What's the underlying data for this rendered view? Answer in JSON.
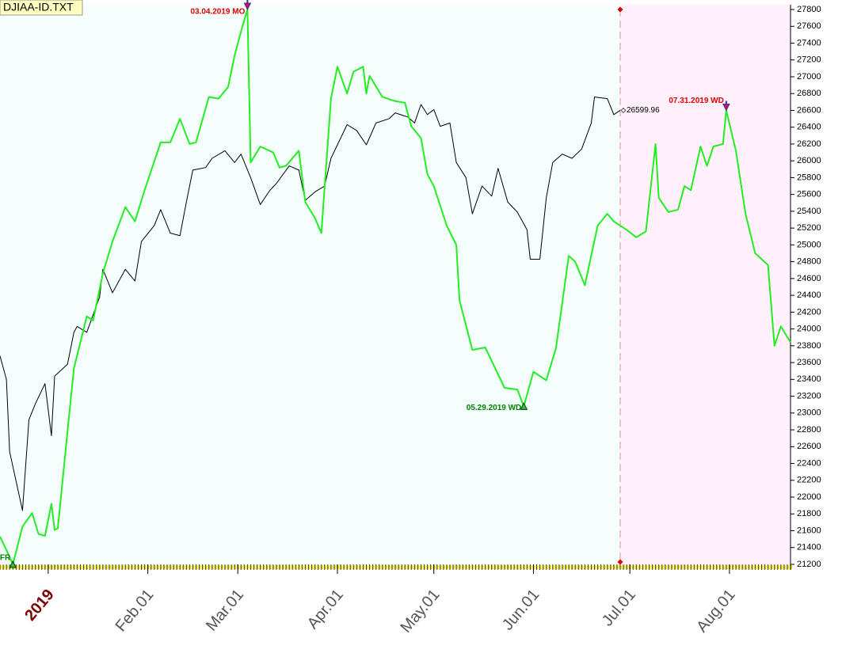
{
  "chart_data": {
    "type": "line",
    "title": "DJIAA-ID.TXT",
    "xlim": [
      -15,
      231
    ],
    "xticks": [
      {
        "value": 0,
        "label": "2019"
      },
      {
        "value": 31,
        "label": "Feb.01"
      },
      {
        "value": 59,
        "label": "Mar.01"
      },
      {
        "value": 90,
        "label": "Apr.01"
      },
      {
        "value": 120,
        "label": "May.01"
      },
      {
        "value": 151,
        "label": "Jun.01"
      },
      {
        "value": 181,
        "label": "Jul.01"
      },
      {
        "value": 212,
        "label": "Aug.01"
      }
    ],
    "ylim": [
      21200,
      27800
    ],
    "yticks": [
      21200,
      21400,
      21600,
      21800,
      22000,
      22200,
      22400,
      22600,
      22800,
      23000,
      23200,
      23400,
      23600,
      23800,
      24000,
      24200,
      24400,
      24600,
      24800,
      25000,
      25200,
      25400,
      25600,
      25800,
      26000,
      26200,
      26400,
      26600,
      26800,
      27000,
      27200,
      27400,
      27600,
      27800
    ],
    "projection_start": 178,
    "background_colors": [
      "#f4fffd",
      "#fff0fb"
    ],
    "series": [
      {
        "color": "#000000",
        "x": [
          -15,
          -13,
          -12,
          -8,
          -6,
          -4,
          -1,
          1,
          2,
          6,
          8,
          9,
          12,
          16,
          17,
          20,
          24,
          27,
          29,
          33,
          35,
          38,
          41,
          43,
          45,
          49,
          51,
          55,
          58,
          60,
          63,
          66,
          69,
          71,
          75,
          78,
          80,
          83,
          86,
          88,
          91,
          93,
          96,
          99,
          102,
          106,
          108,
          112,
          114,
          116,
          118,
          120,
          122,
          125,
          127,
          130,
          132,
          135,
          138,
          140,
          143,
          146,
          149,
          150,
          153,
          155,
          157,
          160,
          163,
          166,
          169,
          170,
          174,
          176,
          178
        ],
        "values": [
          23680,
          23400,
          22540,
          21840,
          22920,
          23110,
          23350,
          22730,
          23440,
          23580,
          23960,
          24030,
          23960,
          24380,
          24710,
          24430,
          24710,
          24570,
          25040,
          25230,
          25420,
          25140,
          25110,
          25510,
          25890,
          25920,
          26030,
          26120,
          25980,
          26080,
          25800,
          25480,
          25650,
          25730,
          25940,
          25890,
          25530,
          25630,
          25700,
          26030,
          26270,
          26430,
          26360,
          26190,
          26450,
          26500,
          26570,
          26520,
          26450,
          26670,
          26550,
          26610,
          26410,
          26450,
          25980,
          25800,
          25370,
          25700,
          25580,
          25910,
          25510,
          25390,
          25180,
          24830,
          24830,
          25560,
          25980,
          26080,
          26030,
          26140,
          26450,
          26760,
          26740,
          26550,
          26599.96
        ]
      },
      {
        "color": "#22ee22",
        "x": [
          -15,
          -13,
          -11,
          -8,
          -5,
          -3,
          -1,
          1,
          2,
          3,
          6,
          8,
          12,
          14,
          17,
          20,
          24,
          27,
          30,
          35,
          38,
          41,
          44,
          46,
          50,
          53,
          56,
          58,
          60,
          62,
          63,
          66,
          70,
          72,
          74,
          78,
          80,
          83,
          85,
          88,
          90,
          93,
          95,
          98,
          99,
          100,
          104,
          108,
          111,
          113,
          116,
          118,
          120,
          124,
          127,
          128,
          132,
          136,
          139,
          142,
          146,
          148,
          151,
          155,
          158,
          162,
          164,
          167,
          171,
          174,
          176,
          180,
          183,
          186,
          189,
          190,
          193,
          196,
          198,
          200,
          203,
          205,
          207,
          210,
          211,
          214,
          217,
          220,
          224,
          226,
          228,
          231
        ],
        "values": [
          21530,
          21370,
          21200,
          21650,
          21810,
          21560,
          21540,
          21920,
          21610,
          21630,
          22780,
          23530,
          24150,
          24100,
          24660,
          25040,
          25450,
          25280,
          25650,
          26220,
          26220,
          26500,
          26200,
          26220,
          26760,
          26740,
          26880,
          27250,
          27540,
          27800,
          25980,
          26170,
          26100,
          25920,
          25940,
          26120,
          25510,
          25320,
          25140,
          26740,
          27120,
          26800,
          27060,
          27120,
          26800,
          27010,
          26760,
          26710,
          26690,
          26410,
          26270,
          25840,
          25700,
          25230,
          25000,
          24340,
          23750,
          23780,
          23540,
          23300,
          23280,
          23080,
          23490,
          23390,
          23770,
          24870,
          24800,
          24520,
          25230,
          25370,
          25280,
          25180,
          25090,
          25160,
          26200,
          25560,
          25390,
          25420,
          25700,
          25650,
          26170,
          25940,
          26170,
          26200,
          26600,
          26120,
          25370,
          24900,
          24760,
          23800,
          24030,
          23840
        ]
      }
    ],
    "annotations": [
      {
        "text": "03.04.2019 MO",
        "x": 62,
        "value": 27800,
        "marker": "down",
        "color": "#e00000"
      },
      {
        "text": "05.29.2019 WD",
        "x": 148,
        "value": 23080,
        "marker": "up",
        "color": "#008000"
      },
      {
        "text": "07.31.2019 WD",
        "x": 211,
        "value": 26600,
        "marker": "down",
        "color": "#e00000"
      },
      {
        "text": "FR",
        "x": -11,
        "value": 21200,
        "marker": "up",
        "color": "#008000"
      }
    ]
  }
}
